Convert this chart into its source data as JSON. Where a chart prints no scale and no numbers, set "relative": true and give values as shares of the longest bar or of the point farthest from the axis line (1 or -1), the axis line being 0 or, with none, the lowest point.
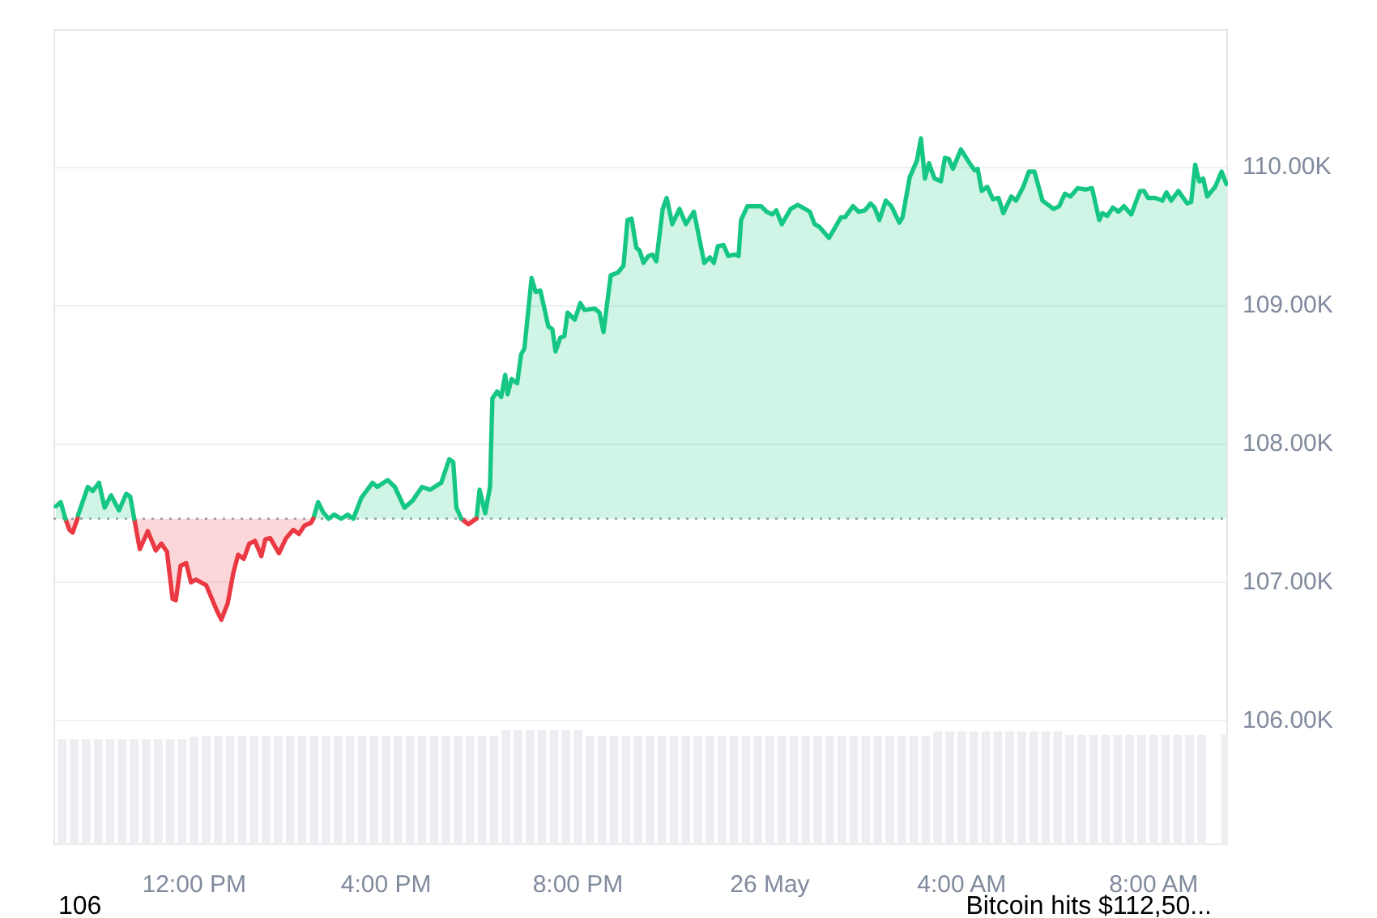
{
  "chart_data": [
    {
      "type": "area",
      "xlim": [
        "--05-25T09:04",
        "--05-26T09:33"
      ],
      "xticks": [
        {
          "value": "--05-25T12:00",
          "label": "12:00 PM"
        },
        {
          "value": "--05-25T16:00",
          "label": "4:00 PM"
        },
        {
          "value": "--05-25T20:00",
          "label": "8:00 PM"
        },
        {
          "value": "--05-26T00:00",
          "label": "26 May"
        },
        {
          "value": "--05-26T04:00",
          "label": "4:00 AM"
        },
        {
          "value": "--05-26T08:00",
          "label": "8:00 AM"
        }
      ],
      "ylim": [
        105100,
        111000
      ],
      "yticks": [
        {
          "value": 106000,
          "label": "106.00K"
        },
        {
          "value": 107000,
          "label": "107.00K"
        },
        {
          "value": 108000,
          "label": "108.00K"
        },
        {
          "value": 109000,
          "label": "109.00K"
        },
        {
          "value": 110000,
          "label": "110.00K"
        }
      ],
      "grid": "y",
      "ref_lines": [
        {
          "axis": "y",
          "value": 107460,
          "color": "#9aa0aa",
          "line_style": "dotted"
        }
      ],
      "series": [
        {
          "color": "#16c784",
          "x": [
            "--05-25T09:07",
            "--05-25T09:13",
            "--05-25T09:19"
          ],
          "values": [
            107550,
            107580,
            107460
          ]
        },
        {
          "color": "#ea3943",
          "x": [
            "--05-25T09:19",
            "--05-25T09:24",
            "--05-25T09:28",
            "--05-25T09:34"
          ],
          "values": [
            107460,
            107380,
            107360,
            107460
          ]
        },
        {
          "color": "#16c784",
          "x": [
            "--05-25T09:34",
            "--05-25T09:35",
            "--05-25T09:47",
            "--05-25T09:53",
            "--05-25T10:01",
            "--05-25T10:08",
            "--05-25T10:16",
            "--05-25T10:26",
            "--05-25T10:35",
            "--05-25T10:40",
            "--05-25T10:45"
          ],
          "values": [
            107460,
            107490,
            107690,
            107660,
            107720,
            107540,
            107630,
            107520,
            107640,
            107620,
            107460
          ]
        },
        {
          "color": "#ea3943",
          "x": [
            "--05-25T10:45",
            "--05-25T10:52",
            "--05-25T11:02",
            "--05-25T11:12",
            "--05-25T11:19",
            "--05-25T11:26",
            "--05-25T11:33",
            "--05-25T11:37",
            "--05-25T11:43",
            "--05-25T11:50",
            "--05-25T11:56",
            "--05-25T12:02",
            "--05-25T12:15",
            "--05-25T12:28",
            "--05-25T12:34",
            "--05-25T12:42",
            "--05-25T12:49",
            "--05-25T12:55",
            "--05-25T13:02",
            "--05-25T13:09",
            "--05-25T13:16",
            "--05-25T13:24",
            "--05-25T13:29",
            "--05-25T13:35",
            "--05-25T13:46",
            "--05-25T13:55",
            "--05-25T14:04",
            "--05-25T14:11",
            "--05-25T14:18",
            "--05-25T14:26",
            "--05-25T14:29"
          ],
          "values": [
            107460,
            107240,
            107370,
            107230,
            107280,
            107220,
            106880,
            106870,
            107120,
            107140,
            107000,
            107020,
            106980,
            106800,
            106730,
            106850,
            107070,
            107200,
            107170,
            107280,
            107300,
            107190,
            107310,
            107320,
            107210,
            107320,
            107380,
            107350,
            107410,
            107430,
            107460
          ]
        },
        {
          "color": "#16c784",
          "x": [
            "--05-25T14:29",
            "--05-25T14:35",
            "--05-25T14:41",
            "--05-25T14:48",
            "--05-25T14:55",
            "--05-25T15:04",
            "--05-25T15:12",
            "--05-25T15:19",
            "--05-25T15:29",
            "--05-25T15:43",
            "--05-25T15:49",
            "--05-25T16:02",
            "--05-25T16:11",
            "--05-25T16:23",
            "--05-25T16:33",
            "--05-25T16:45",
            "--05-25T16:55",
            "--05-25T17:09",
            "--05-25T17:19",
            "--05-25T17:24",
            "--05-25T17:28",
            "--05-25T17:34"
          ],
          "values": [
            107460,
            107580,
            107510,
            107460,
            107490,
            107460,
            107490,
            107460,
            107610,
            107720,
            107690,
            107740,
            107690,
            107540,
            107590,
            107690,
            107670,
            107720,
            107890,
            107870,
            107540,
            107460
          ]
        },
        {
          "color": "#ea3943",
          "x": [
            "--05-25T17:34",
            "--05-25T17:43",
            "--05-25T17:53"
          ],
          "values": [
            107460,
            107420,
            107460
          ]
        },
        {
          "color": "#16c784",
          "x": [
            "--05-25T17:53",
            "--05-25T17:57",
            "--05-25T18:04",
            "--05-25T18:10",
            "--05-25T18:13",
            "--05-25T18:19",
            "--05-25T18:24",
            "--05-25T18:29",
            "--05-25T18:32",
            "--05-25T18:37",
            "--05-25T18:44",
            "--05-25T18:49",
            "--05-25T18:53",
            "--05-25T19:02",
            "--05-25T19:07",
            "--05-25T19:13",
            "--05-25T19:23",
            "--05-25T19:28",
            "--05-25T19:32",
            "--05-25T19:38",
            "--05-25T19:43",
            "--05-25T19:47",
            "--05-25T19:56",
            "--05-25T20:03",
            "--05-25T20:08",
            "--05-25T20:21",
            "--05-25T20:27",
            "--05-25T20:32",
            "--05-25T20:41",
            "--05-25T20:50",
            "--05-25T20:57",
            "--05-25T21:02",
            "--05-25T21:07",
            "--05-25T21:13",
            "--05-25T21:17",
            "--05-25T21:22",
            "--05-25T21:28",
            "--05-25T21:33",
            "--05-25T21:38",
            "--05-25T21:46",
            "--05-25T21:51",
            "--05-25T21:58",
            "--05-25T22:07",
            "--05-25T22:15",
            "--05-25T22:25",
            "--05-25T22:38",
            "--05-25T22:45",
            "--05-25T22:50",
            "--05-25T22:55",
            "--05-25T23:02",
            "--05-25T23:08",
            "--05-25T23:16",
            "--05-25T23:21",
            "--05-25T23:24",
            "--05-25T23:32",
            "--05-25T23:49",
            "--05-25T23:56",
            "--05-26T00:03",
            "--05-26T00:08",
            "--05-26T00:15",
            "--05-26T00:26",
            "--05-26T00:35",
            "--05-26T00:50",
            "--05-26T00:56",
            "--05-26T01:02",
            "--05-26T01:14",
            "--05-26T01:29",
            "--05-26T01:34",
            "--05-26T01:44",
            "--05-26T01:51",
            "--05-26T01:59",
            "--05-26T02:06",
            "--05-26T02:11",
            "--05-26T02:17",
            "--05-26T02:25",
            "--05-26T02:32",
            "--05-26T02:42",
            "--05-26T02:46",
            "--05-26T02:55",
            "--05-26T03:04",
            "--05-26T03:09",
            "--05-26T03:14",
            "--05-26T03:19",
            "--05-26T03:26",
            "--05-26T03:34",
            "--05-26T03:39",
            "--05-26T03:44",
            "--05-26T03:49",
            "--05-26T03:59",
            "--05-26T04:10",
            "--05-26T04:16",
            "--05-26T04:20",
            "--05-26T04:25",
            "--05-26T04:32",
            "--05-26T04:39",
            "--05-26T04:46",
            "--05-26T04:52",
            "--05-26T05:02",
            "--05-26T05:08",
            "--05-26T05:17",
            "--05-26T05:24",
            "--05-26T05:31",
            "--05-26T05:41",
            "--05-26T05:55",
            "--05-26T06:02",
            "--05-26T06:09",
            "--05-26T06:16",
            "--05-26T06:25",
            "--05-26T06:35",
            "--05-26T06:43",
            "--05-26T06:52",
            "--05-26T06:56",
            "--05-26T07:02",
            "--05-26T07:09",
            "--05-26T07:16",
            "--05-26T07:23",
            "--05-26T07:32",
            "--05-26T07:43",
            "--05-26T07:48",
            "--05-26T07:53",
            "--05-26T08:02",
            "--05-26T08:11",
            "--05-26T08:16",
            "--05-26T08:22",
            "--05-26T08:31",
            "--05-26T08:42",
            "--05-26T08:47",
            "--05-26T08:52",
            "--05-26T08:57",
            "--05-26T09:02",
            "--05-26T09:07",
            "--05-26T09:17",
            "--05-26T09:25",
            "--05-26T09:31"
          ],
          "values": [
            107460,
            107670,
            107500,
            107690,
            108330,
            108380,
            108340,
            108500,
            108360,
            108470,
            108440,
            108650,
            108690,
            109200,
            109100,
            109110,
            108850,
            108830,
            108670,
            108770,
            108780,
            108950,
            108900,
            109020,
            108970,
            108980,
            108950,
            108810,
            109220,
            109240,
            109290,
            109620,
            109630,
            109420,
            109400,
            109310,
            109360,
            109370,
            109320,
            109700,
            109780,
            109590,
            109700,
            109590,
            109680,
            109310,
            109350,
            109310,
            109430,
            109440,
            109360,
            109370,
            109360,
            109620,
            109720,
            109720,
            109680,
            109660,
            109690,
            109590,
            109700,
            109730,
            109680,
            109590,
            109570,
            109490,
            109640,
            109640,
            109720,
            109680,
            109690,
            109740,
            109710,
            109620,
            109760,
            109720,
            109600,
            109640,
            109930,
            110050,
            110210,
            109920,
            110030,
            109920,
            109900,
            110070,
            110060,
            109990,
            110130,
            110030,
            109980,
            109990,
            109830,
            109860,
            109770,
            109780,
            109670,
            109790,
            109760,
            109860,
            109970,
            109970,
            109760,
            109700,
            109720,
            109810,
            109790,
            109850,
            109840,
            109850,
            109620,
            109670,
            109650,
            109710,
            109680,
            109720,
            109660,
            109830,
            109830,
            109780,
            109780,
            109760,
            109820,
            109760,
            109830,
            109740,
            109750,
            110020,
            109900,
            109920,
            109790,
            109860,
            109970,
            109880
          ]
        }
      ],
      "annotations": [
        "106",
        "Bitcoin hits $112,50..."
      ]
    },
    {
      "type": "bar",
      "relative": true,
      "tick_labels": false,
      "color": "#eceef2",
      "xlim": [
        "--05-25T09:04",
        "--05-26T09:33"
      ],
      "x": [
        "--05-25T09:15",
        "--05-25T09:30",
        "--05-25T09:45",
        "--05-25T10:00",
        "--05-25T10:15",
        "--05-25T10:30",
        "--05-25T10:45",
        "--05-25T11:00",
        "--05-25T11:15",
        "--05-25T11:30",
        "--05-25T11:45",
        "--05-25T12:00",
        "--05-25T12:15",
        "--05-25T12:30",
        "--05-25T12:45",
        "--05-25T13:00",
        "--05-25T13:15",
        "--05-25T13:30",
        "--05-25T13:45",
        "--05-25T14:00",
        "--05-25T14:15",
        "--05-25T14:30",
        "--05-25T14:45",
        "--05-25T15:00",
        "--05-25T15:15",
        "--05-25T15:30",
        "--05-25T15:45",
        "--05-25T16:00",
        "--05-25T16:15",
        "--05-25T16:30",
        "--05-25T16:45",
        "--05-25T17:00",
        "--05-25T17:15",
        "--05-25T17:30",
        "--05-25T17:45",
        "--05-25T18:00",
        "--05-25T18:15",
        "--05-25T18:30",
        "--05-25T18:45",
        "--05-25T19:00",
        "--05-25T19:15",
        "--05-25T19:30",
        "--05-25T19:45",
        "--05-25T20:00",
        "--05-25T20:15",
        "--05-25T20:30",
        "--05-25T20:45",
        "--05-25T21:00",
        "--05-25T21:15",
        "--05-25T21:30",
        "--05-25T21:45",
        "--05-25T22:00",
        "--05-25T22:15",
        "--05-25T22:30",
        "--05-25T22:45",
        "--05-25T23:00",
        "--05-25T23:15",
        "--05-25T23:30",
        "--05-25T23:45",
        "--05-26T00:00",
        "--05-26T00:15",
        "--05-26T00:30",
        "--05-26T00:45",
        "--05-26T01:00",
        "--05-26T01:15",
        "--05-26T01:30",
        "--05-26T01:45",
        "--05-26T02:00",
        "--05-26T02:15",
        "--05-26T02:30",
        "--05-26T02:45",
        "--05-26T03:00",
        "--05-26T03:15",
        "--05-26T03:30",
        "--05-26T03:45",
        "--05-26T04:00",
        "--05-26T04:15",
        "--05-26T04:30",
        "--05-26T04:45",
        "--05-26T05:00",
        "--05-26T05:15",
        "--05-26T05:30",
        "--05-26T05:45",
        "--05-26T06:00",
        "--05-26T06:15",
        "--05-26T06:30",
        "--05-26T06:45",
        "--05-26T07:00",
        "--05-26T07:15",
        "--05-26T07:30",
        "--05-26T07:45",
        "--05-26T08:00",
        "--05-26T08:15",
        "--05-26T08:30",
        "--05-26T08:45",
        "--05-26T09:00",
        "--05-26T09:15",
        "--05-26T09:30"
      ],
      "values": [
        0.92,
        0.92,
        0.92,
        0.92,
        0.92,
        0.92,
        0.92,
        0.92,
        0.92,
        0.92,
        0.92,
        0.94,
        0.95,
        0.95,
        0.95,
        0.95,
        0.95,
        0.95,
        0.95,
        0.95,
        0.95,
        0.95,
        0.95,
        0.95,
        0.95,
        0.95,
        0.95,
        0.95,
        0.95,
        0.95,
        0.95,
        0.95,
        0.95,
        0.95,
        0.95,
        0.95,
        0.95,
        1,
        1,
        1,
        1,
        1,
        1,
        1,
        0.95,
        0.95,
        0.95,
        0.95,
        0.95,
        0.95,
        0.95,
        0.95,
        0.95,
        0.95,
        0.95,
        0.95,
        0.95,
        0.95,
        0.95,
        0.95,
        0.95,
        0.95,
        0.95,
        0.95,
        0.95,
        0.95,
        0.95,
        0.95,
        0.95,
        0.95,
        0.95,
        0.95,
        0.95,
        0.99,
        0.99,
        0.99,
        0.99,
        0.99,
        0.99,
        0.99,
        0.99,
        0.99,
        0.99,
        0.99,
        0.96,
        0.96,
        0.96,
        0.96,
        0.96,
        0.96,
        0.96,
        0.96,
        0.96,
        0.96,
        0.96,
        0.96,
        null,
        0.96
      ]
    }
  ]
}
